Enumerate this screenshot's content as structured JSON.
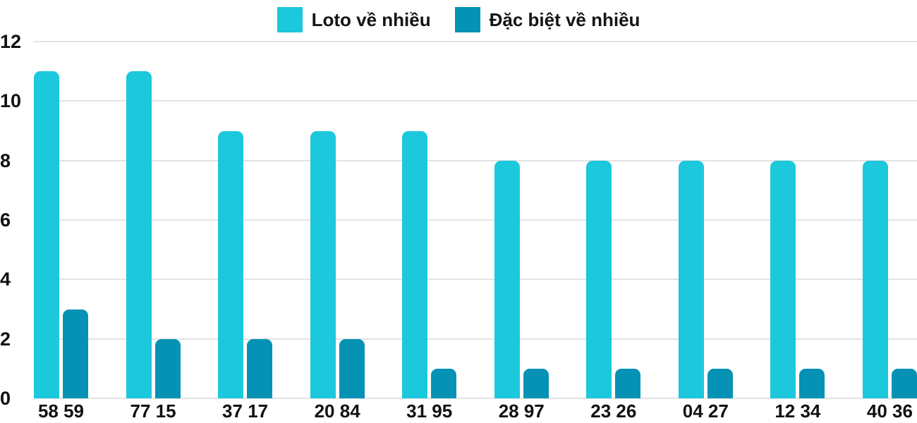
{
  "chart_data": {
    "type": "bar",
    "title": "",
    "xlabel": "",
    "ylabel": "",
    "categories": [
      "58 59",
      "77 15",
      "37 17",
      "20 84",
      "31 95",
      "28 97",
      "23 26",
      "04 27",
      "12 34",
      "40 36"
    ],
    "series": [
      {
        "name": "Loto về nhiều",
        "color": "#1cc8dc",
        "values": [
          11,
          11,
          9,
          9,
          9,
          8,
          8,
          8,
          8,
          8
        ]
      },
      {
        "name": "Đặc biệt về nhiều",
        "color": "#0592b4",
        "values": [
          3,
          2,
          2,
          2,
          1,
          1,
          1,
          1,
          1,
          1
        ]
      }
    ],
    "ylim": [
      0,
      12
    ],
    "yticks": [
      0,
      2,
      4,
      6,
      8,
      10,
      12
    ],
    "grid": true,
    "legend_position": "top"
  },
  "colors": {
    "grid": "#e3e3e3",
    "text": "#111111",
    "background": "#ffffff"
  }
}
